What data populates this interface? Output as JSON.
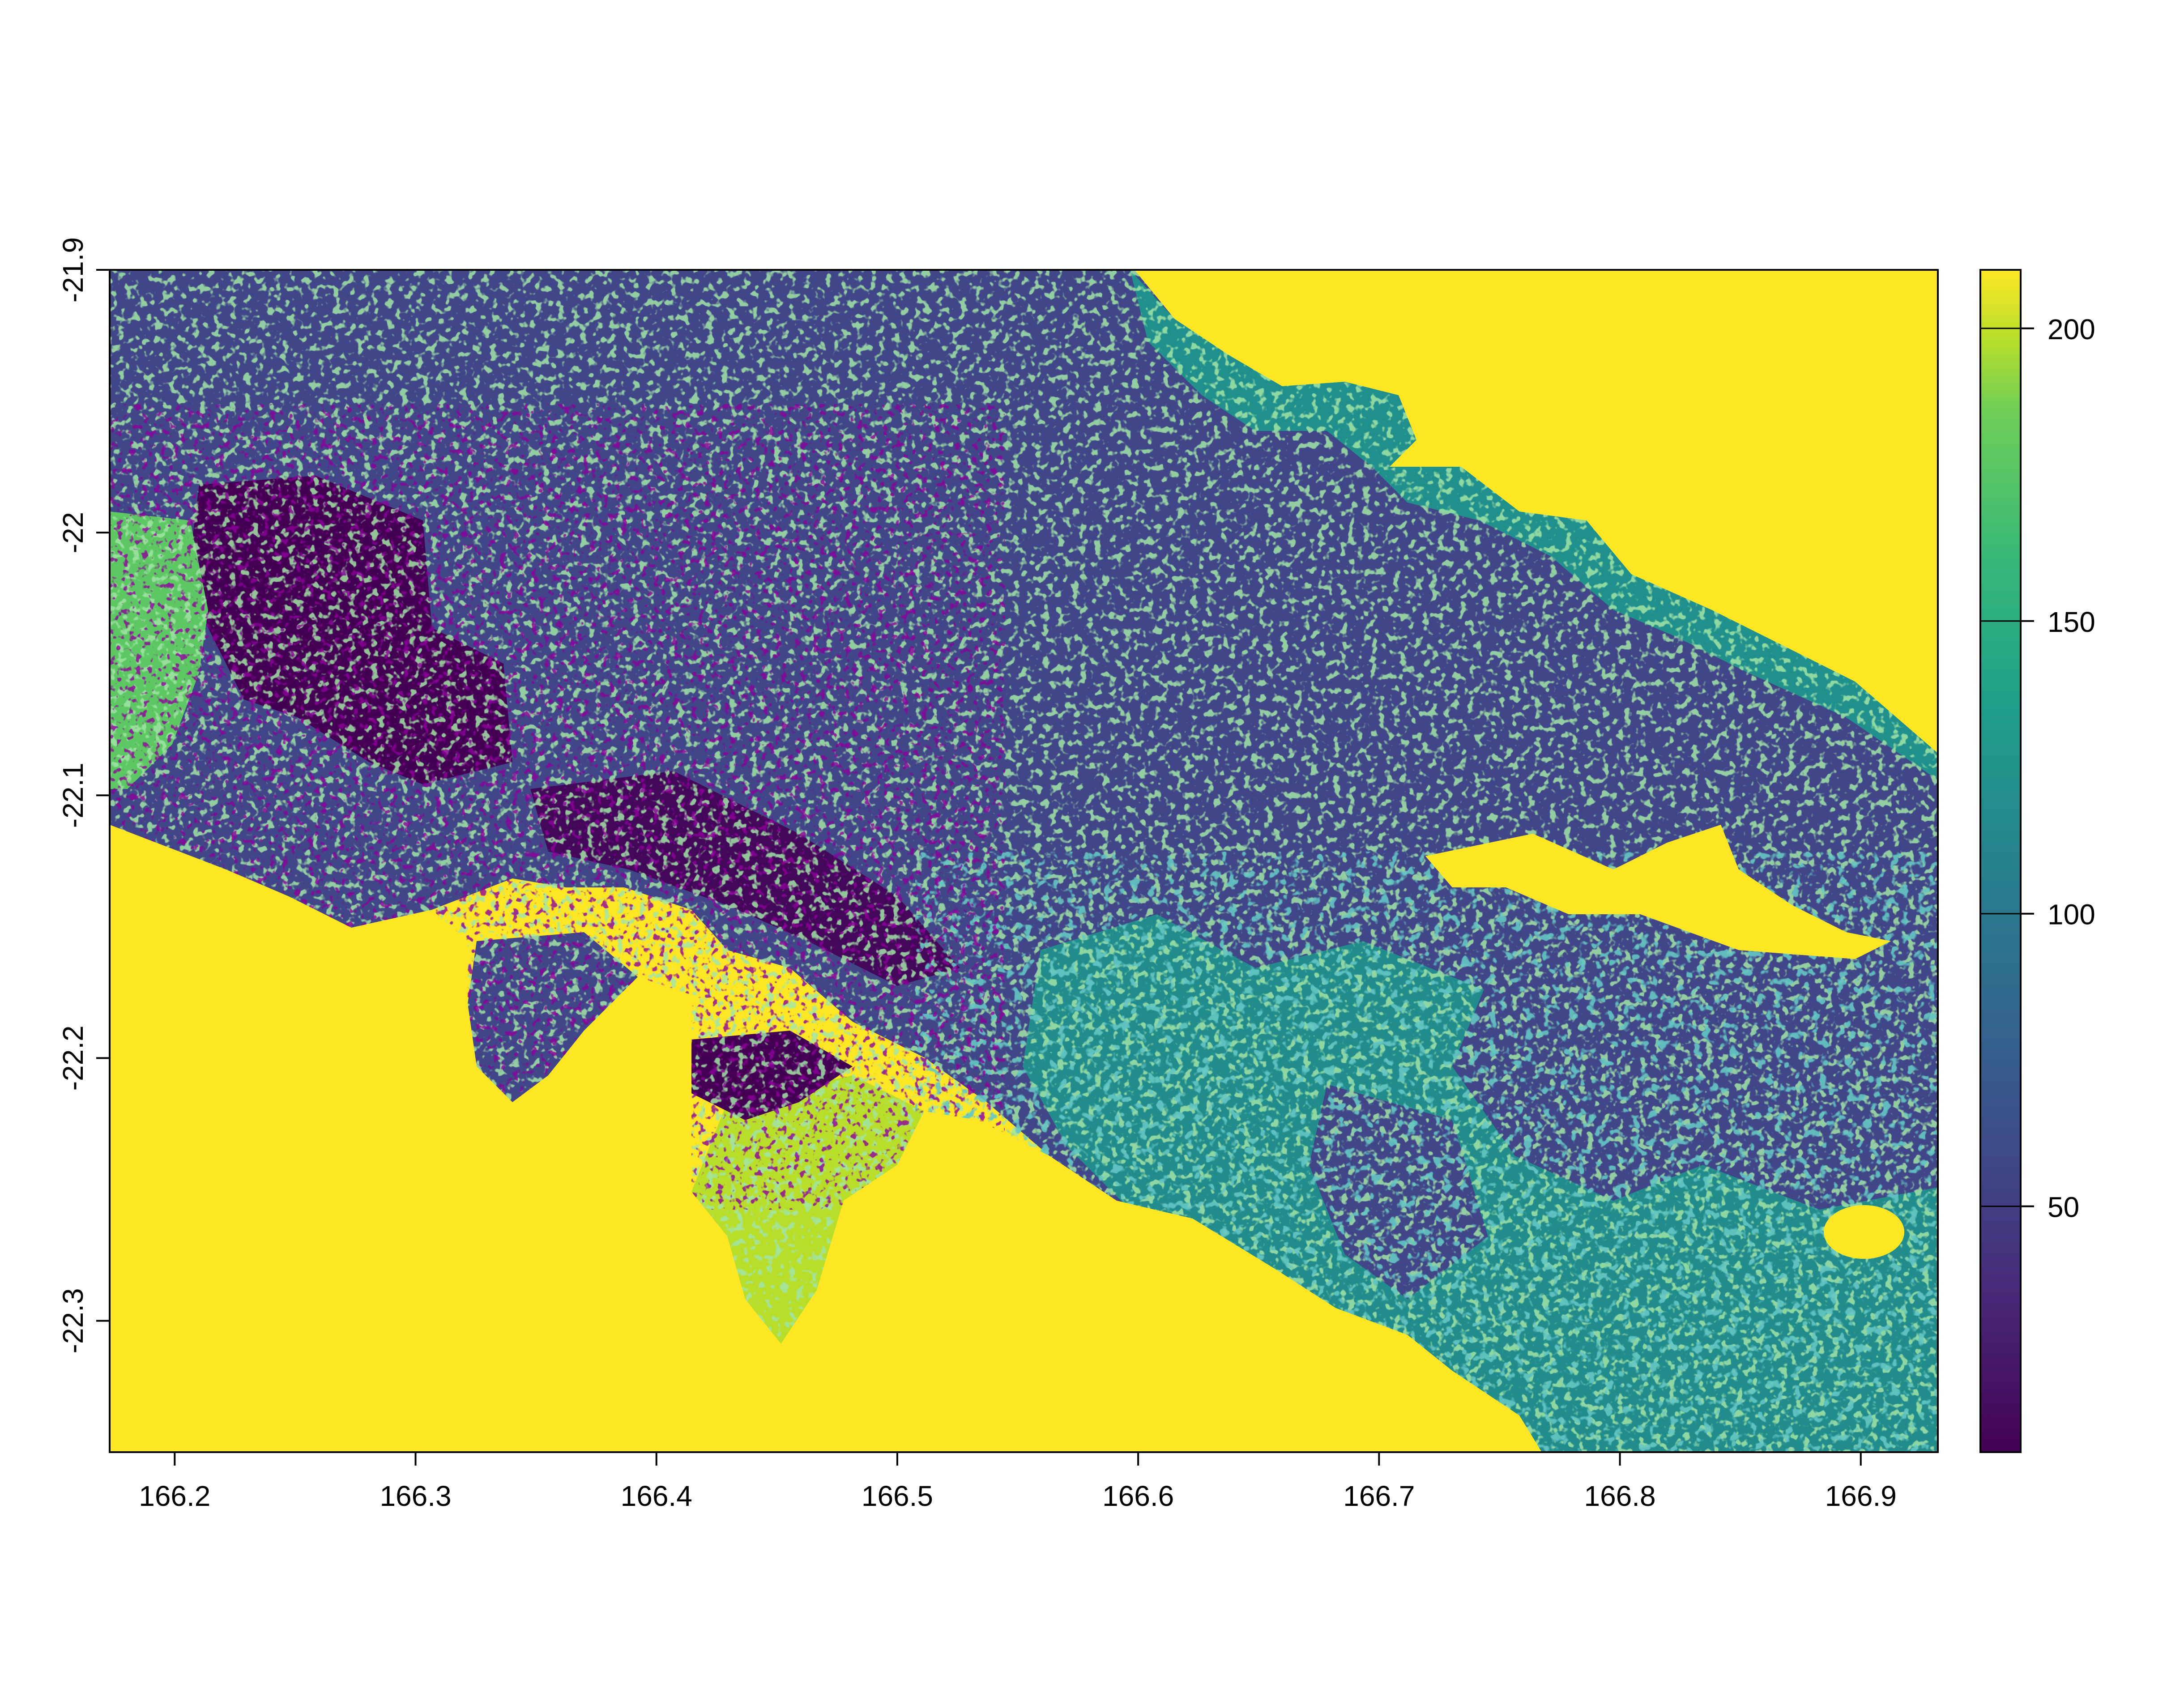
{
  "chart_data": {
    "type": "heatmap",
    "title": "",
    "xlabel": "",
    "ylabel": "",
    "x_range": [
      166.173,
      166.932
    ],
    "y_range": [
      -22.35,
      -21.9
    ],
    "x_ticks": [
      "166.2",
      "166.3",
      "166.4",
      "166.5",
      "166.6",
      "166.7",
      "166.8",
      "166.9"
    ],
    "y_ticks": [
      "-21.9",
      "-22",
      "-22.1",
      "-22.2",
      "-22.3"
    ],
    "legend": {
      "position": "right",
      "range": [
        8,
        210
      ],
      "ticks": [
        "50",
        "100",
        "150",
        "200"
      ],
      "palette": "viridis"
    },
    "colors": {
      "water": "#FDE725",
      "dominant_land": "#404688",
      "low": "#440154",
      "mid": "#21908C",
      "high_green": "#5DC863",
      "yellow_green": "#B8DE29"
    }
  }
}
